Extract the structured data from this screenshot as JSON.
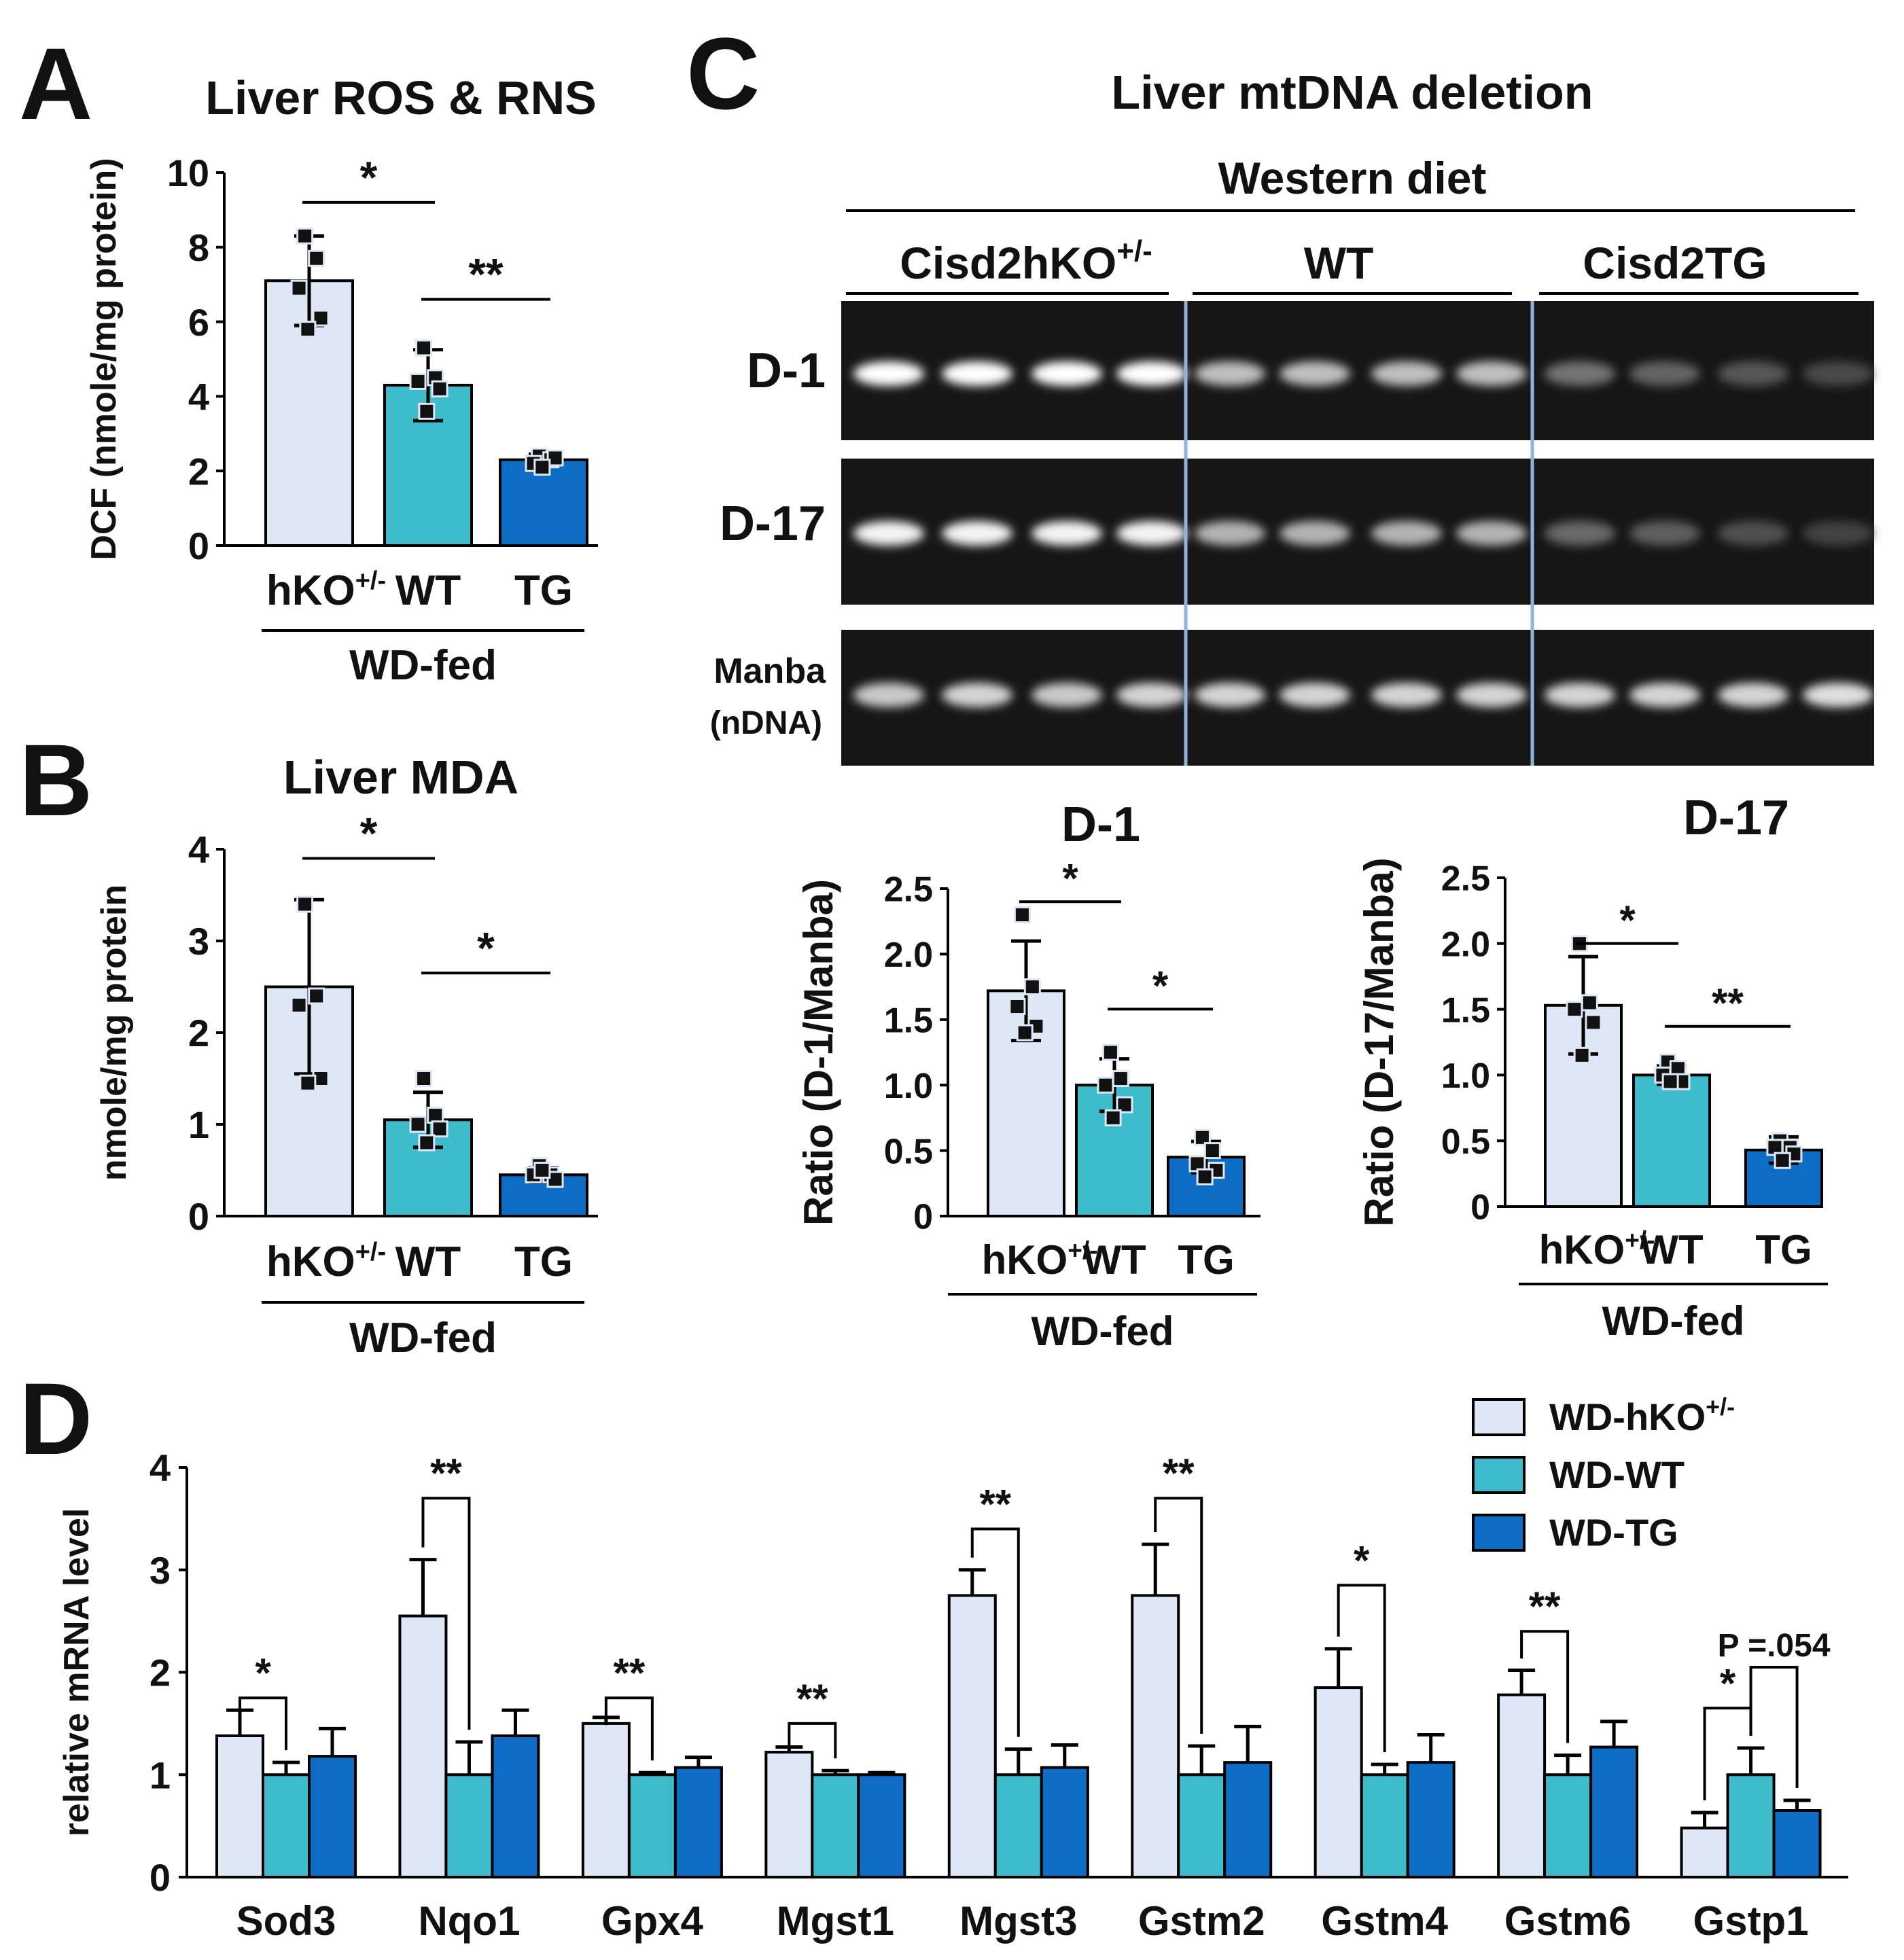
{
  "colors": {
    "hko": "#dde7f5",
    "wt": "#3fbccc",
    "tg": "#0d6cc4",
    "gel_bg": "#161616",
    "separator": "#8fb3d9"
  },
  "panel_letters": {
    "a": "A",
    "b": "B",
    "c": "C",
    "d": "D"
  },
  "sub_superscript": "+/-",
  "chart_data": [
    {
      "id": "A",
      "type": "bar",
      "title": "Liver ROS & RNS",
      "ylabel": "DCF (nmole/mg protein)",
      "ylim": [
        0,
        10
      ],
      "yticks": [
        0,
        2,
        4,
        6,
        8,
        10
      ],
      "tick_labels": [
        "0",
        "2",
        "4",
        "6",
        "8",
        "10"
      ],
      "categories": [
        "hKO",
        "WT",
        "TG"
      ],
      "category_sup": [
        "+/-",
        "",
        ""
      ],
      "group_label": "WD-fed",
      "values": [
        7.1,
        4.3,
        2.3
      ],
      "errors": [
        1.2,
        0.95,
        0.15
      ],
      "points": [
        [
          8.3,
          7.7,
          6.9,
          6.1,
          5.8
        ],
        [
          5.3,
          4.5,
          4.4,
          4.2,
          3.6
        ],
        [
          2.4,
          2.3,
          2.2,
          2.35,
          2.1
        ]
      ],
      "significance": [
        {
          "from": 0,
          "to": 1,
          "label": "*",
          "y": 9.2
        },
        {
          "from": 1,
          "to": 2,
          "label": "**",
          "y": 6.6
        }
      ]
    },
    {
      "id": "B",
      "type": "bar",
      "title": "Liver MDA",
      "ylabel": "nmole/mg protein",
      "ylim": [
        0,
        4
      ],
      "yticks": [
        0,
        1,
        2,
        3,
        4
      ],
      "tick_labels": [
        "0",
        "1",
        "2",
        "3",
        "4"
      ],
      "categories": [
        "hKO",
        "WT",
        "TG"
      ],
      "category_sup": [
        "+/-",
        "",
        ""
      ],
      "group_label": "WD-fed",
      "values": [
        2.5,
        1.05,
        0.45
      ],
      "errors": [
        0.95,
        0.3,
        0.08
      ],
      "points": [
        [
          3.4,
          2.4,
          2.3,
          1.5,
          1.45
        ],
        [
          1.5,
          1.1,
          1.0,
          0.95,
          0.8
        ],
        [
          0.55,
          0.45,
          0.45,
          0.4,
          0.5
        ]
      ],
      "significance": [
        {
          "from": 0,
          "to": 1,
          "label": "*",
          "y": 3.9
        },
        {
          "from": 1,
          "to": 2,
          "label": "*",
          "y": 2.65
        }
      ]
    },
    {
      "id": "C-D1",
      "type": "bar",
      "title": "D-1",
      "ylabel": "Ratio (D-1/Manba)",
      "ylim": [
        0,
        2.5
      ],
      "yticks": [
        0,
        0.5,
        1.0,
        1.5,
        2.0,
        2.5
      ],
      "tick_labels": [
        "0",
        "0.5",
        "1.0",
        "1.5",
        "2.0",
        "2.5"
      ],
      "categories": [
        "hKO",
        "WT",
        "TG"
      ],
      "category_sup": [
        "+/-",
        "",
        ""
      ],
      "group_label": "WD-fed",
      "values": [
        1.72,
        1.0,
        0.45
      ],
      "errors": [
        0.38,
        0.2,
        0.12
      ],
      "points": [
        [
          2.3,
          1.75,
          1.6,
          1.45,
          1.4
        ],
        [
          1.25,
          1.05,
          1.0,
          0.85,
          0.75
        ],
        [
          0.6,
          0.5,
          0.4,
          0.35,
          0.3
        ]
      ],
      "significance": [
        {
          "from": 0,
          "to": 1,
          "label": "*",
          "y": 2.4
        },
        {
          "from": 1,
          "to": 2,
          "label": "*",
          "y": 1.58
        }
      ]
    },
    {
      "id": "C-D17",
      "type": "bar",
      "title": "D-17",
      "ylabel": "Ratio (D-17/Manba)",
      "ylim": [
        0,
        2.5
      ],
      "yticks": [
        0,
        0.5,
        1.0,
        1.5,
        2.0,
        2.5
      ],
      "tick_labels": [
        "0",
        "0.5",
        "1.0",
        "1.5",
        "2.0",
        "2.5"
      ],
      "categories": [
        "hKO",
        "WT",
        "TG"
      ],
      "category_sup": [
        "+/-",
        "",
        ""
      ],
      "group_label": "WD-fed",
      "values": [
        1.53,
        1.0,
        0.43
      ],
      "errors": [
        0.37,
        0.07,
        0.1
      ],
      "points": [
        [
          2.0,
          1.55,
          1.5,
          1.4,
          1.15
        ],
        [
          1.1,
          1.05,
          1.0,
          0.95,
          0.95
        ],
        [
          0.5,
          0.45,
          0.45,
          0.4,
          0.35
        ]
      ],
      "significance": [
        {
          "from": 0,
          "to": 1,
          "label": "*",
          "y": 2.0
        },
        {
          "from": 1,
          "to": 2,
          "label": "**",
          "y": 1.37
        }
      ]
    },
    {
      "id": "D",
      "type": "grouped-bar",
      "ylabel": "relative mRNA level",
      "ylim": [
        0,
        4
      ],
      "yticks": [
        0,
        1,
        2,
        3,
        4
      ],
      "tick_labels": [
        "0",
        "1",
        "2",
        "3",
        "4"
      ],
      "categories": [
        "Sod3",
        "Nqo1",
        "Gpx4",
        "Mgst1",
        "Mgst3",
        "Gstm2",
        "Gstm4",
        "Gstm6",
        "Gstp1"
      ],
      "legend": [
        "WD-hKO",
        "WD-WT",
        "WD-TG"
      ],
      "legend_sup": [
        "+/-",
        "",
        ""
      ],
      "series": [
        {
          "name": "WD-hKO+/-",
          "values": [
            1.38,
            2.55,
            1.5,
            1.22,
            2.75,
            2.75,
            1.85,
            1.78,
            0.48
          ],
          "errors": [
            0.25,
            0.55,
            0.06,
            0.05,
            0.25,
            0.5,
            0.38,
            0.24,
            0.15
          ]
        },
        {
          "name": "WD-WT",
          "values": [
            1.0,
            1.0,
            1.0,
            1.0,
            1.0,
            1.0,
            1.0,
            1.0,
            1.0
          ],
          "errors": [
            0.12,
            0.32,
            0.02,
            0.04,
            0.25,
            0.28,
            0.1,
            0.19,
            0.26
          ]
        },
        {
          "name": "WD-TG",
          "values": [
            1.18,
            1.38,
            1.07,
            1.0,
            1.07,
            1.12,
            1.12,
            1.27,
            0.65
          ],
          "errors": [
            0.27,
            0.25,
            0.1,
            0.02,
            0.22,
            0.35,
            0.27,
            0.25,
            0.1
          ]
        }
      ],
      "significance": [
        {
          "cat": 0,
          "from": 0,
          "to": 1,
          "label": "*",
          "y": 1.75
        },
        {
          "cat": 1,
          "from": 0,
          "to": 1,
          "label": "**",
          "y": 3.7
        },
        {
          "cat": 2,
          "from": 0,
          "to": 1,
          "label": "**",
          "y": 1.75
        },
        {
          "cat": 3,
          "from": 0,
          "to": 1,
          "label": "**",
          "y": 1.5
        },
        {
          "cat": 4,
          "from": 0,
          "to": 1,
          "label": "**",
          "y": 3.4
        },
        {
          "cat": 5,
          "from": 0,
          "to": 1,
          "label": "**",
          "y": 3.7
        },
        {
          "cat": 6,
          "from": 0,
          "to": 1,
          "label": "*",
          "y": 2.85
        },
        {
          "cat": 7,
          "from": 0,
          "to": 1,
          "label": "**",
          "y": 2.4
        },
        {
          "cat": 8,
          "from": 0,
          "to": 1,
          "label": "*",
          "y": 1.65
        },
        {
          "cat": 8,
          "from": 1,
          "to": 2,
          "label": "P =.054",
          "y": 2.05
        }
      ]
    }
  ],
  "gel": {
    "title": "Liver mtDNA deletion",
    "diet_label": "Western diet",
    "groups": [
      {
        "name": "Cisd2hKO",
        "sup": "+/-"
      },
      {
        "name": "WT",
        "sup": ""
      },
      {
        "name": "Cisd2TG",
        "sup": ""
      }
    ],
    "rows": [
      {
        "label": "D-1",
        "sub": "",
        "intensity": [
          1.0,
          1.0,
          1.0,
          1.0,
          0.7,
          0.7,
          0.7,
          0.7,
          0.35,
          0.28,
          0.22,
          0.15
        ]
      },
      {
        "label": "D-17",
        "sub": "",
        "intensity": [
          0.95,
          0.95,
          0.95,
          0.95,
          0.65,
          0.65,
          0.65,
          0.65,
          0.3,
          0.25,
          0.18,
          0.12
        ]
      },
      {
        "label": "Manba",
        "sub": "(nDNA)",
        "intensity": [
          0.75,
          0.8,
          0.75,
          0.8,
          0.8,
          0.8,
          0.8,
          0.8,
          0.8,
          0.8,
          0.8,
          0.85
        ]
      }
    ]
  }
}
